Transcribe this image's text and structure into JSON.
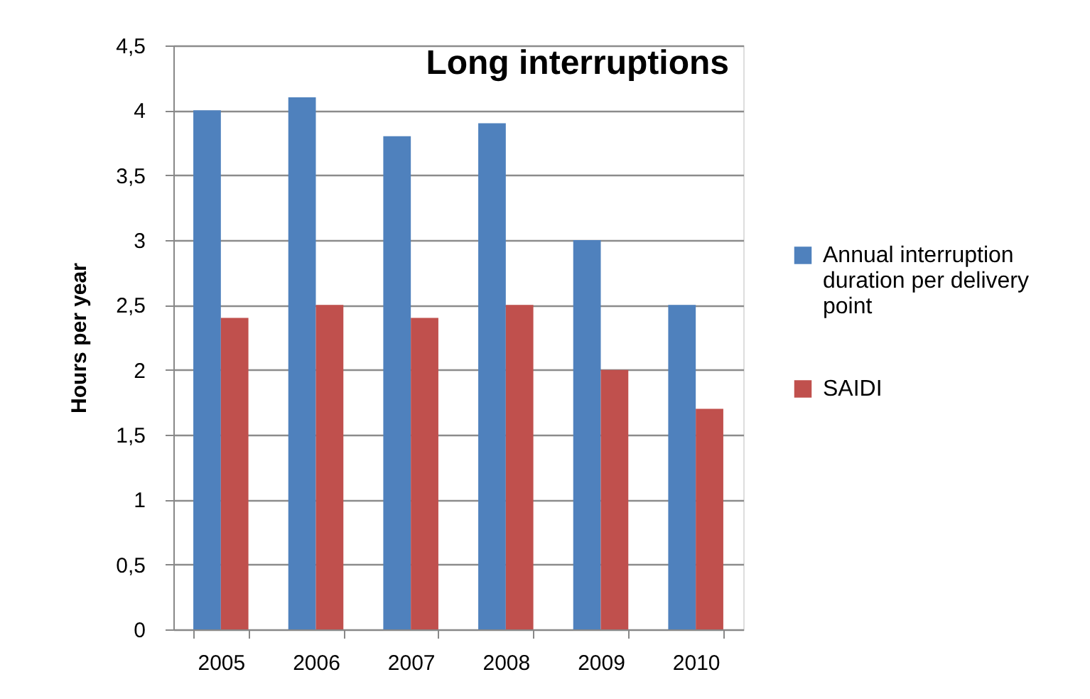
{
  "chart_data": {
    "type": "bar",
    "title": "Long interruptions",
    "ylabel": "Hours per year",
    "categories": [
      "2005",
      "2006",
      "2007",
      "2008",
      "2009",
      "2010"
    ],
    "series": [
      {
        "name": "Annual interruption duration per delivery point",
        "color": "#4f81bd",
        "values": [
          4,
          4.1,
          3.8,
          3.9,
          3,
          2.5
        ]
      },
      {
        "name": "SAIDI",
        "color": "#c0504d",
        "values": [
          2.4,
          2.5,
          2.4,
          2.5,
          2,
          1.7
        ]
      }
    ],
    "ylim": [
      0,
      4.5
    ],
    "yticks": [
      0,
      {
        "value": 0.5,
        "label": "0,5"
      },
      1,
      {
        "value": 1.5,
        "label": "1,5"
      },
      2,
      {
        "value": 2.5,
        "label": "2,5"
      },
      3,
      {
        "value": 3.5,
        "label": "3,5"
      },
      4,
      {
        "value": 4.5,
        "label": "4,5"
      }
    ],
    "grid": "y",
    "legend": "right"
  }
}
